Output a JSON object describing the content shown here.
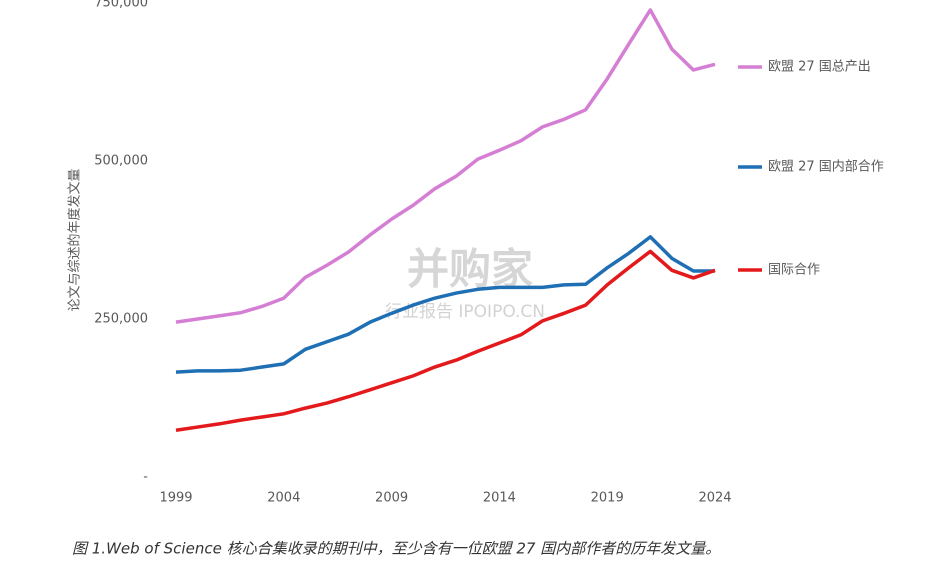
{
  "chart_data": {
    "type": "line",
    "y_label": "论文与综述的年度发文量",
    "caption": "图 1.Web of Science 核心合集收录的期刊中，至少含有一位欧盟 27 国内部作者的历年发文量。",
    "x": [
      1999,
      2000,
      2001,
      2002,
      2003,
      2004,
      2005,
      2006,
      2007,
      2008,
      2009,
      2010,
      2011,
      2012,
      2013,
      2014,
      2015,
      2016,
      2017,
      2018,
      2019,
      2020,
      2021,
      2022,
      2023,
      2024
    ],
    "xlim": [
      1999,
      2024
    ],
    "xticks": [
      1999,
      2004,
      2009,
      2014,
      2019,
      2024
    ],
    "ylim": [
      0,
      750000
    ],
    "yticks": [
      {
        "value": 0,
        "label": "-"
      },
      {
        "value": 250000,
        "label": "250,000"
      },
      {
        "value": 500000,
        "label": "500,000"
      },
      {
        "value": 750000,
        "label": "750,000"
      }
    ],
    "grid": false,
    "legend": "right",
    "series": [
      {
        "name": "欧盟 27 国总产出",
        "color": "#d57fd4",
        "values": [
          245000,
          250000,
          255000,
          260000,
          270000,
          283000,
          316000,
          335000,
          356000,
          383000,
          408000,
          430000,
          456000,
          476000,
          503000,
          517000,
          532000,
          554000,
          566000,
          581000,
          630000,
          685000,
          739000,
          677000,
          644000,
          653000
        ]
      },
      {
        "name": "欧盟 27 国内部合作",
        "color": "#1f6fb5",
        "values": [
          166000,
          168000,
          168000,
          169000,
          174000,
          179000,
          202000,
          214000,
          226000,
          245000,
          259000,
          272000,
          283000,
          291000,
          297000,
          300000,
          300000,
          300000,
          304000,
          305000,
          331000,
          354000,
          380000,
          346000,
          326000,
          326000
        ]
      },
      {
        "name": "国际合作",
        "color": "#e3191b",
        "values": [
          74000,
          79000,
          84000,
          90000,
          95000,
          100000,
          109000,
          117000,
          127000,
          138000,
          149000,
          160000,
          174000,
          185000,
          199000,
          212000,
          225000,
          247000,
          259000,
          272000,
          304000,
          331000,
          357000,
          327000,
          315000,
          327000
        ]
      }
    ]
  },
  "watermark": {
    "title": "并购家",
    "subtitle": "行业报告 IPOIPO.CN"
  }
}
